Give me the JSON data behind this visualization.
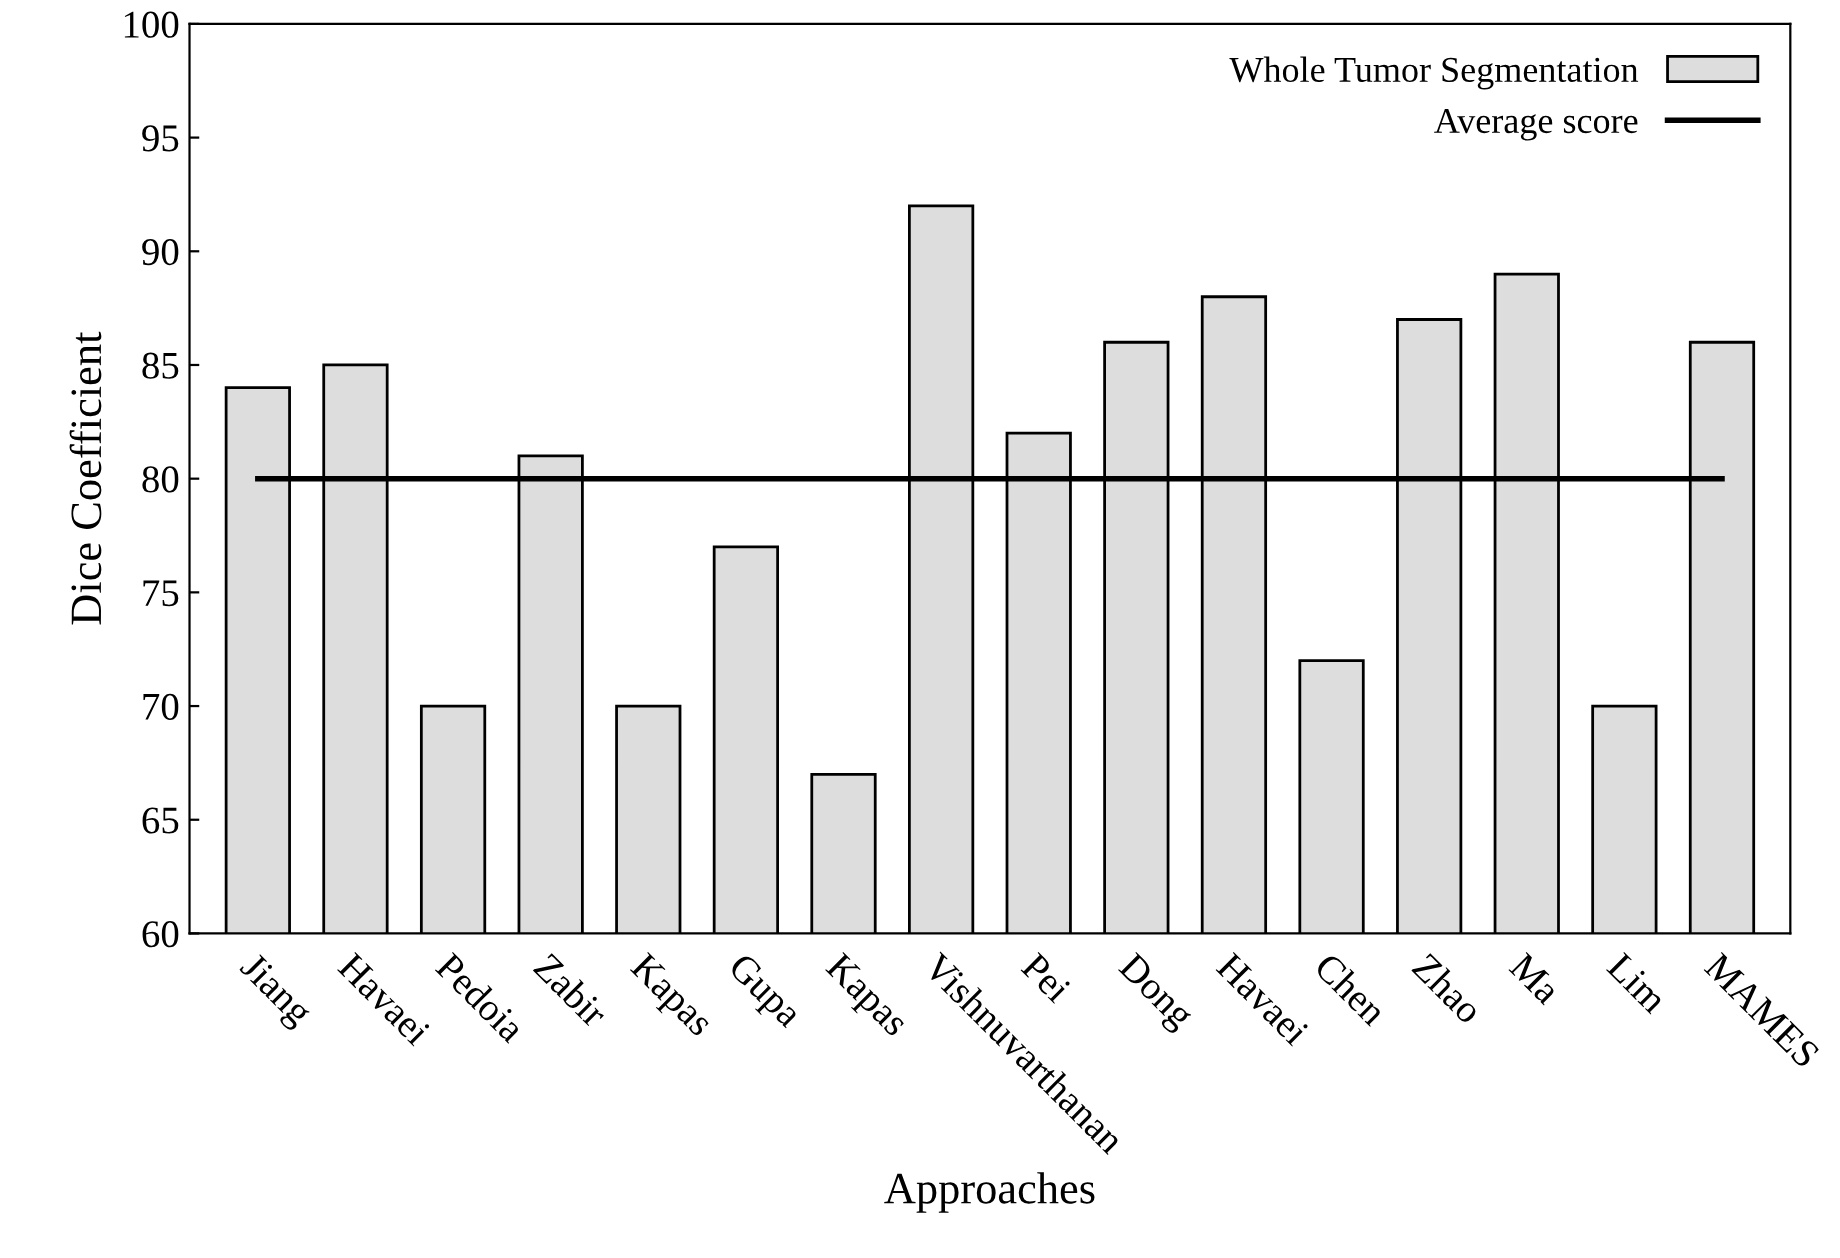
{
  "chart_data": {
    "type": "bar",
    "xlabel": "Approaches",
    "ylabel": "Dice Coefficient",
    "categories": [
      "Jiang",
      "Havaei",
      "Pedoia",
      "Zabir",
      "Kapas",
      "Gupa",
      "Kapas",
      "Vishnuvarthanan",
      "Pei",
      "Dong",
      "Havaei",
      "Chen",
      "Zhao",
      "Ma",
      "Lim",
      "MAMES"
    ],
    "series": [
      {
        "name": "Whole Tumor Segmentation",
        "color": "#dddddd",
        "values": [
          84,
          85,
          70,
          81,
          70,
          77,
          67,
          92,
          82,
          86,
          88,
          72,
          87,
          89,
          70,
          86
        ]
      },
      {
        "name": "Average score",
        "type": "line",
        "color": "#000000",
        "values": [
          80,
          80,
          80,
          80,
          80,
          80,
          80,
          80,
          80,
          80,
          80,
          80,
          80,
          80,
          80,
          80
        ]
      }
    ],
    "ylim": [
      60,
      100
    ],
    "yticks": [
      60,
      65,
      70,
      75,
      80,
      85,
      90,
      95,
      100
    ],
    "legend": "top right"
  }
}
